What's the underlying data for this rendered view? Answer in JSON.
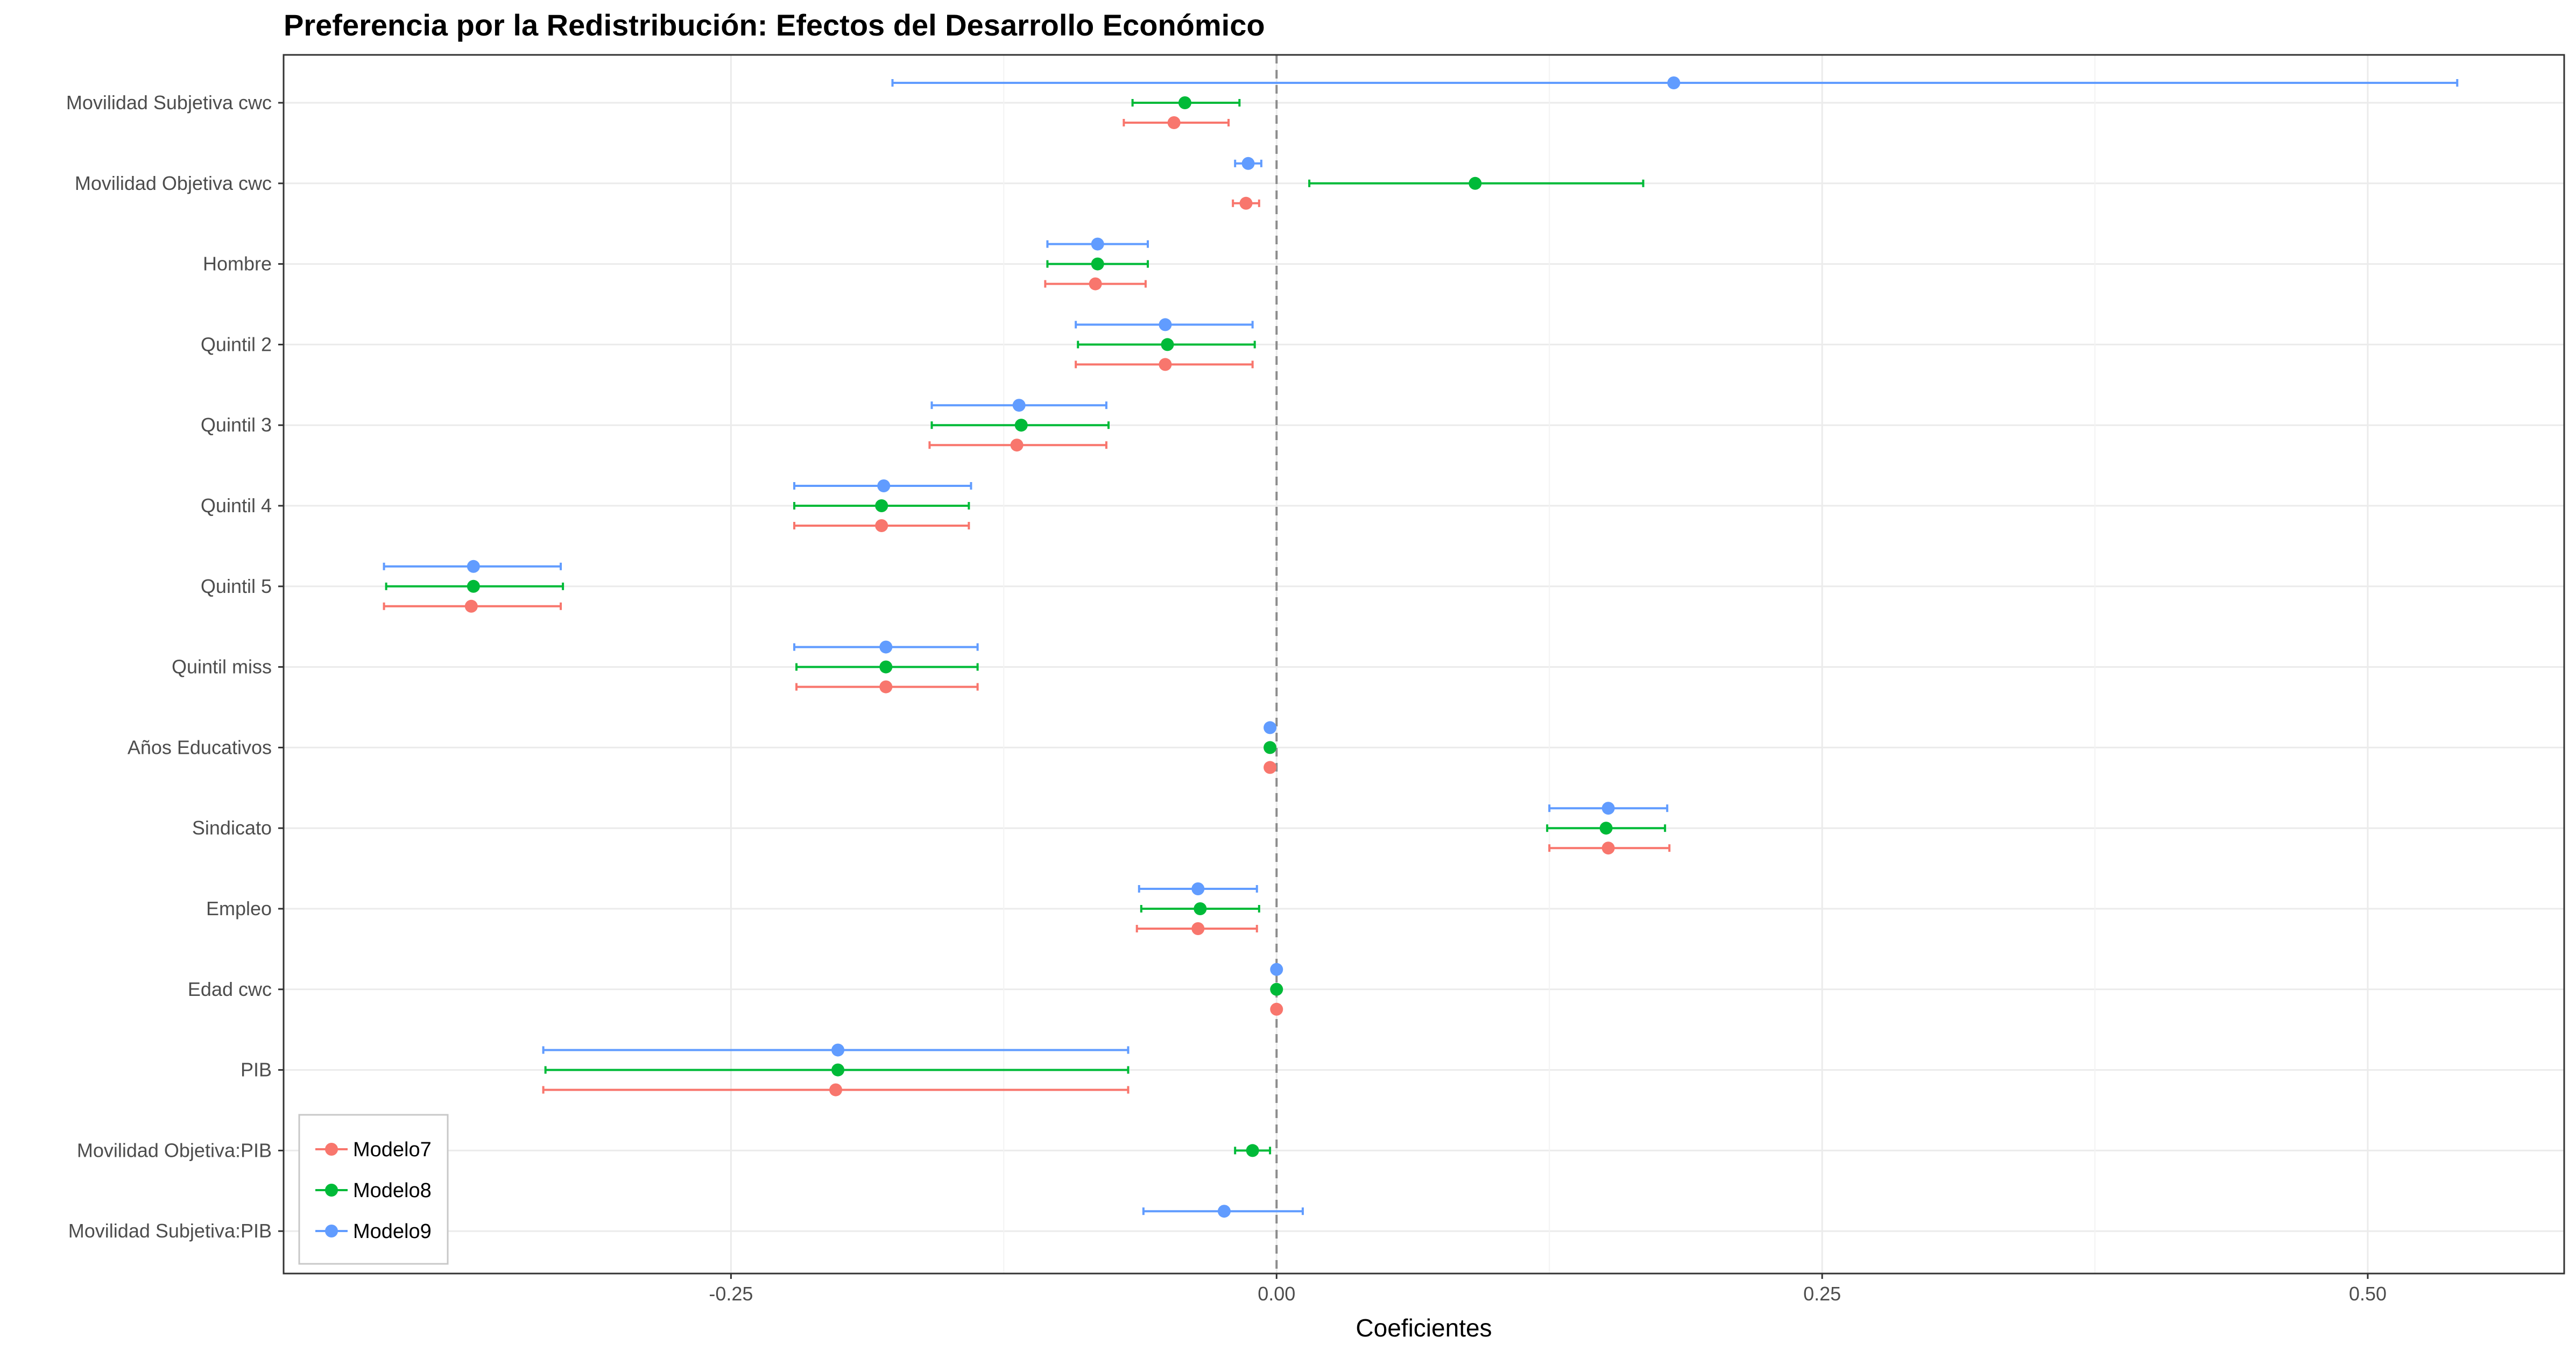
{
  "chart_data": {
    "type": "scatter",
    "subtype": "coefficient-plot-with-error-bars",
    "title": "Preferencia por la Redistribución: Efectos del Desarrollo Económico",
    "xlabel": "Coeficientes",
    "ylabel": "",
    "xlim": [
      -0.455,
      0.59
    ],
    "xticks": [
      -0.25,
      0.0,
      0.25,
      0.5
    ],
    "xtick_labels": [
      "-0.25",
      "0.00",
      "0.25",
      "0.50"
    ],
    "zero_line": 0.0,
    "grid": true,
    "legend_position": "bottom-left",
    "categories": [
      "Movilidad Subjetiva cwc",
      "Movilidad Objetiva cwc",
      "Hombre",
      "Quintil 2",
      "Quintil 3",
      "Quintil 4",
      "Quintil 5",
      "Quintil miss",
      "Años Educativos",
      "Sindicato",
      "Empleo",
      "Edad cwc",
      "PIB",
      "Movilidad Objetiva:PIB",
      "Movilidad Subjetiva:PIB"
    ],
    "series": [
      {
        "name": "Modelo7",
        "color": "#F8766D",
        "points": [
          {
            "category": "Movilidad Subjetiva cwc",
            "estimate": -0.047,
            "lower": -0.07,
            "upper": -0.022
          },
          {
            "category": "Movilidad Objetiva cwc",
            "estimate": -0.014,
            "lower": -0.02,
            "upper": -0.008
          },
          {
            "category": "Hombre",
            "estimate": -0.083,
            "lower": -0.106,
            "upper": -0.06
          },
          {
            "category": "Quintil 2",
            "estimate": -0.051,
            "lower": -0.092,
            "upper": -0.011
          },
          {
            "category": "Quintil 3",
            "estimate": -0.119,
            "lower": -0.159,
            "upper": -0.078
          },
          {
            "category": "Quintil 4",
            "estimate": -0.181,
            "lower": -0.221,
            "upper": -0.141
          },
          {
            "category": "Quintil 5",
            "estimate": -0.369,
            "lower": -0.409,
            "upper": -0.328
          },
          {
            "category": "Quintil miss",
            "estimate": -0.179,
            "lower": -0.22,
            "upper": -0.137
          },
          {
            "category": "Años Educativos",
            "estimate": -0.003,
            "lower": -0.004,
            "upper": -0.002
          },
          {
            "category": "Sindicato",
            "estimate": 0.152,
            "lower": 0.125,
            "upper": 0.18
          },
          {
            "category": "Empleo",
            "estimate": -0.036,
            "lower": -0.064,
            "upper": -0.009
          },
          {
            "category": "Edad cwc",
            "estimate": 0.0,
            "lower": -0.0005,
            "upper": 0.0005
          },
          {
            "category": "PIB",
            "estimate": -0.202,
            "lower": -0.336,
            "upper": -0.068
          }
        ]
      },
      {
        "name": "Modelo8",
        "color": "#00BA38",
        "points": [
          {
            "category": "Movilidad Subjetiva cwc",
            "estimate": -0.042,
            "lower": -0.066,
            "upper": -0.017
          },
          {
            "category": "Movilidad Objetiva cwc",
            "estimate": 0.091,
            "lower": 0.015,
            "upper": 0.168
          },
          {
            "category": "Hombre",
            "estimate": -0.082,
            "lower": -0.105,
            "upper": -0.059
          },
          {
            "category": "Quintil 2",
            "estimate": -0.05,
            "lower": -0.091,
            "upper": -0.01
          },
          {
            "category": "Quintil 3",
            "estimate": -0.117,
            "lower": -0.158,
            "upper": -0.077
          },
          {
            "category": "Quintil 4",
            "estimate": -0.181,
            "lower": -0.221,
            "upper": -0.141
          },
          {
            "category": "Quintil 5",
            "estimate": -0.368,
            "lower": -0.408,
            "upper": -0.327
          },
          {
            "category": "Quintil miss",
            "estimate": -0.179,
            "lower": -0.22,
            "upper": -0.137
          },
          {
            "category": "Años Educativos",
            "estimate": -0.003,
            "lower": -0.004,
            "upper": -0.002
          },
          {
            "category": "Sindicato",
            "estimate": 0.151,
            "lower": 0.124,
            "upper": 0.178
          },
          {
            "category": "Empleo",
            "estimate": -0.035,
            "lower": -0.062,
            "upper": -0.008
          },
          {
            "category": "Edad cwc",
            "estimate": 0.0,
            "lower": -0.0005,
            "upper": 0.0005
          },
          {
            "category": "PIB",
            "estimate": -0.201,
            "lower": -0.335,
            "upper": -0.068
          },
          {
            "category": "Movilidad Objetiva:PIB",
            "estimate": -0.011,
            "lower": -0.019,
            "upper": -0.003
          }
        ]
      },
      {
        "name": "Modelo9",
        "color": "#619CFF",
        "points": [
          {
            "category": "Movilidad Subjetiva cwc",
            "estimate": 0.182,
            "lower": -0.176,
            "upper": 0.541
          },
          {
            "category": "Movilidad Objetiva cwc",
            "estimate": -0.013,
            "lower": -0.019,
            "upper": -0.007
          },
          {
            "category": "Hombre",
            "estimate": -0.082,
            "lower": -0.105,
            "upper": -0.059
          },
          {
            "category": "Quintil 2",
            "estimate": -0.051,
            "lower": -0.092,
            "upper": -0.011
          },
          {
            "category": "Quintil 3",
            "estimate": -0.118,
            "lower": -0.158,
            "upper": -0.078
          },
          {
            "category": "Quintil 4",
            "estimate": -0.18,
            "lower": -0.221,
            "upper": -0.14
          },
          {
            "category": "Quintil 5",
            "estimate": -0.368,
            "lower": -0.409,
            "upper": -0.328
          },
          {
            "category": "Quintil miss",
            "estimate": -0.179,
            "lower": -0.221,
            "upper": -0.137
          },
          {
            "category": "Años Educativos",
            "estimate": -0.003,
            "lower": -0.004,
            "upper": -0.002
          },
          {
            "category": "Sindicato",
            "estimate": 0.152,
            "lower": 0.125,
            "upper": 0.179
          },
          {
            "category": "Empleo",
            "estimate": -0.036,
            "lower": -0.063,
            "upper": -0.009
          },
          {
            "category": "Edad cwc",
            "estimate": 0.0,
            "lower": -0.0005,
            "upper": 0.0005
          },
          {
            "category": "PIB",
            "estimate": -0.201,
            "lower": -0.336,
            "upper": -0.068
          },
          {
            "category": "Movilidad Subjetiva:PIB",
            "estimate": -0.024,
            "lower": -0.061,
            "upper": 0.012
          }
        ]
      }
    ]
  }
}
